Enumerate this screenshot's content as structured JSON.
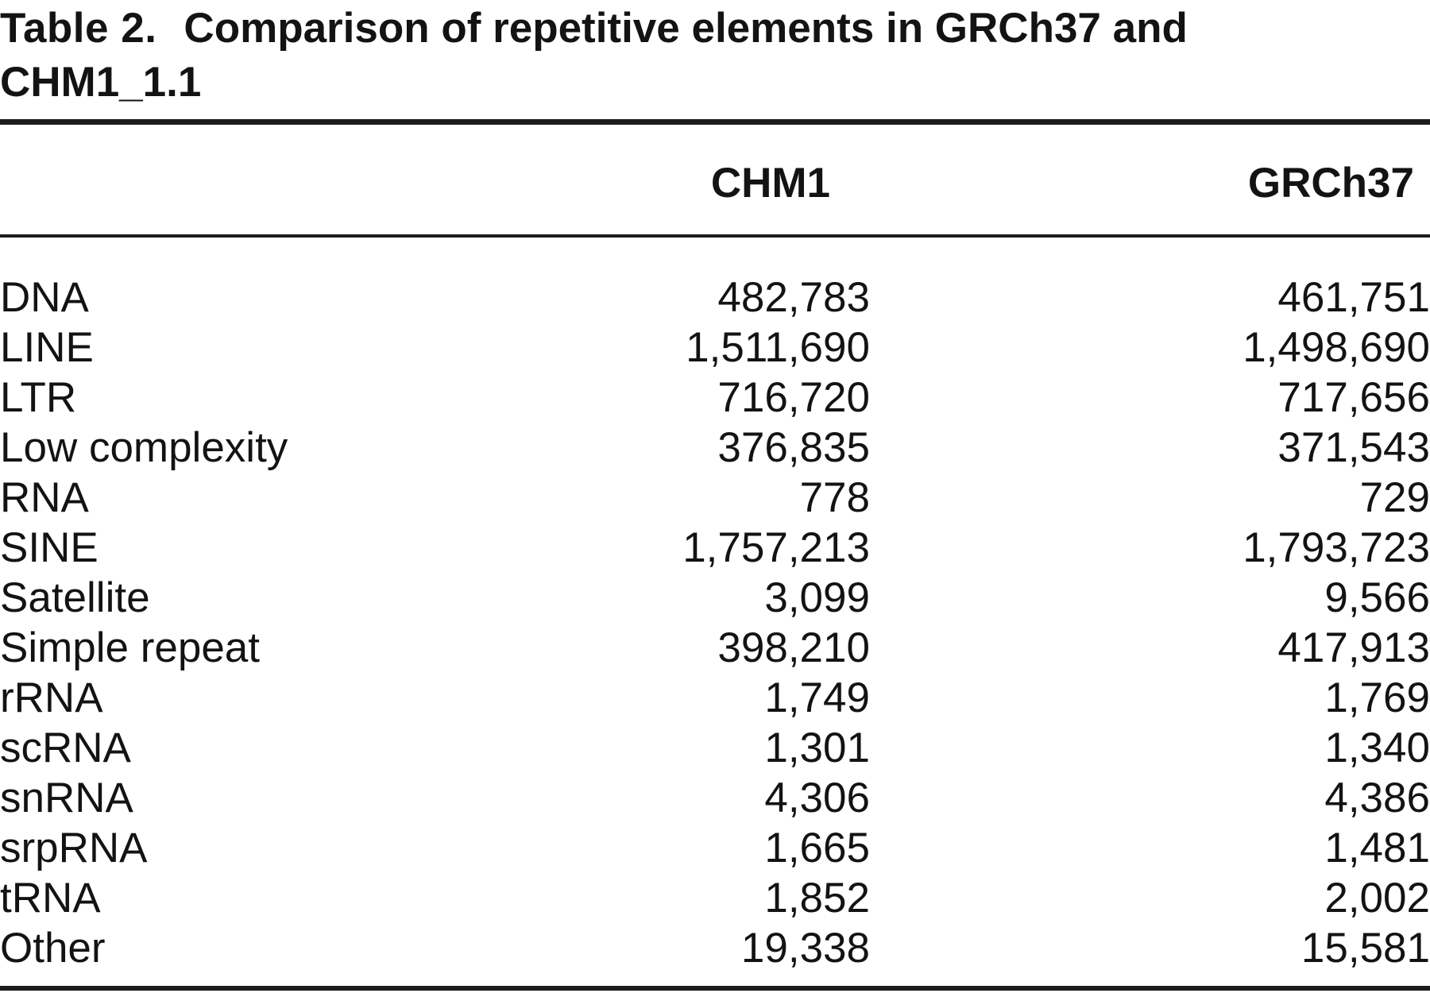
{
  "title": {
    "prefix": "Table 2.",
    "line1": "Comparison of repetitive elements in GRCh37 and",
    "line2": "CHM1_1.1"
  },
  "columns": {
    "chm1": "CHM1",
    "grch37": "GRCh37"
  },
  "rows": [
    {
      "label": "DNA",
      "chm1": "482,783",
      "grch37": "461,751"
    },
    {
      "label": "LINE",
      "chm1": "1,511,690",
      "grch37": "1,498,690"
    },
    {
      "label": "LTR",
      "chm1": "716,720",
      "grch37": "717,656"
    },
    {
      "label": "Low complexity",
      "chm1": "376,835",
      "grch37": "371,543"
    },
    {
      "label": "RNA",
      "chm1": "778",
      "grch37": "729"
    },
    {
      "label": "SINE",
      "chm1": "1,757,213",
      "grch37": "1,793,723"
    },
    {
      "label": "Satellite",
      "chm1": "3,099",
      "grch37": "9,566"
    },
    {
      "label": "Simple repeat",
      "chm1": "398,210",
      "grch37": "417,913"
    },
    {
      "label": "rRNA",
      "chm1": "1,749",
      "grch37": "1,769"
    },
    {
      "label": "scRNA",
      "chm1": "1,301",
      "grch37": "1,340"
    },
    {
      "label": "snRNA",
      "chm1": "4,306",
      "grch37": "4,386"
    },
    {
      "label": "srpRNA",
      "chm1": "1,665",
      "grch37": "1,481"
    },
    {
      "label": "tRNA",
      "chm1": "1,852",
      "grch37": "2,002"
    },
    {
      "label": "Other",
      "chm1": "19,338",
      "grch37": "15,581"
    }
  ],
  "colors": {
    "text": "#131313",
    "rule": "#1c1c1c",
    "background": "#ffffff"
  }
}
